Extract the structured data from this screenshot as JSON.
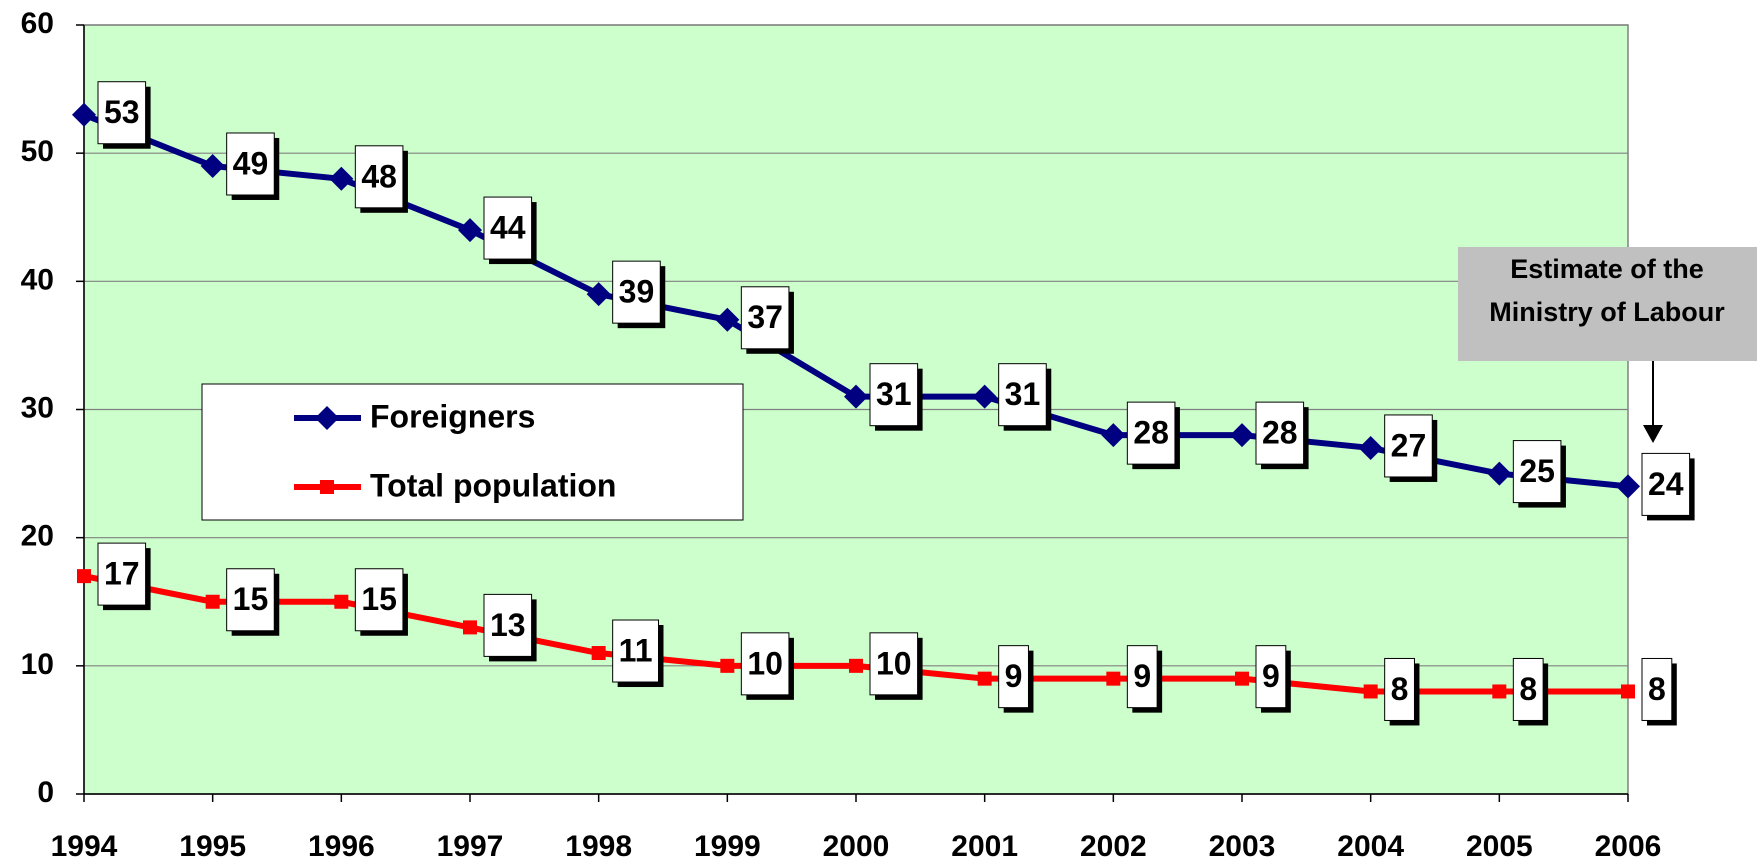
{
  "chart_data": {
    "type": "line",
    "categories": [
      "1994",
      "1995",
      "1996",
      "1997",
      "1998",
      "1999",
      "2000",
      "2001",
      "2002",
      "2003",
      "2004",
      "2005",
      "2006"
    ],
    "series": [
      {
        "name": "Foreigners",
        "color": "#000080",
        "marker": "diamond",
        "values": [
          53,
          49,
          48,
          44,
          39,
          37,
          31,
          31,
          28,
          28,
          27,
          25,
          24
        ]
      },
      {
        "name": "Total population",
        "color": "#ff0000",
        "marker": "square",
        "values": [
          17,
          15,
          15,
          13,
          11,
          10,
          10,
          9,
          9,
          9,
          8,
          8,
          8
        ]
      }
    ],
    "ylim": [
      0,
      60
    ],
    "yticks": [
      0,
      10,
      20,
      30,
      40,
      50,
      60
    ],
    "grid": true,
    "annotation": [
      "Estimate of the",
      "Ministry of Labour"
    ]
  }
}
